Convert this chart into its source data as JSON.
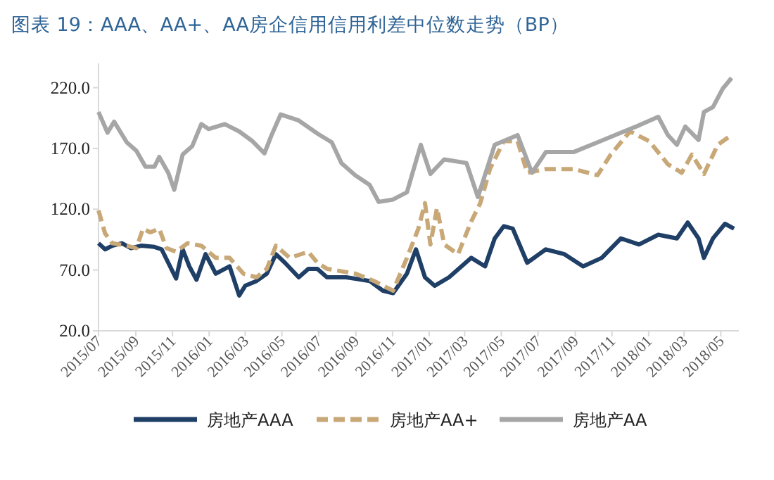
{
  "chart_data": {
    "type": "line",
    "title": "图表 19：AAA、AA+、AA房企信用信用利差中位数走势（BP）",
    "xlim": [
      "2015-07-01",
      "2018-05-31"
    ],
    "xticks": [
      {
        "value": "2015-07",
        "label": "2015/07"
      },
      {
        "value": "2015-09",
        "label": "2015/09"
      },
      {
        "value": "2015-11",
        "label": "2015/11"
      },
      {
        "value": "2016-01",
        "label": "2016/01"
      },
      {
        "value": "2016-03",
        "label": "2016/03"
      },
      {
        "value": "2016-05",
        "label": "2016/05"
      },
      {
        "value": "2016-07",
        "label": "2016/07"
      },
      {
        "value": "2016-09",
        "label": "2016/09"
      },
      {
        "value": "2016-11",
        "label": "2016/11"
      },
      {
        "value": "2017-01",
        "label": "2017/01"
      },
      {
        "value": "2017-03",
        "label": "2017/03"
      },
      {
        "value": "2017-05",
        "label": "2017/05"
      },
      {
        "value": "2017-07",
        "label": "2017/07"
      },
      {
        "value": "2017-09",
        "label": "2017/09"
      },
      {
        "value": "2017-11",
        "label": "2017/11"
      },
      {
        "value": "2018-01",
        "label": "2018/01"
      },
      {
        "value": "2018-03",
        "label": "2018/03"
      },
      {
        "value": "2018-05",
        "label": "2018/05"
      }
    ],
    "ylim": [
      20,
      240
    ],
    "yticks": [
      {
        "value": 20,
        "label": "20.0"
      },
      {
        "value": 70,
        "label": "70.0"
      },
      {
        "value": 120,
        "label": "120.0"
      },
      {
        "value": 170,
        "label": "170.0"
      },
      {
        "value": 220,
        "label": "220.0"
      }
    ],
    "grid": false,
    "legend": "bottom",
    "marker": "none",
    "series": [
      {
        "name": "房地产AAA",
        "color": "#1f3f66",
        "line_style": "solid",
        "x": [
          "2015-07-01",
          "2015-07-12",
          "2015-07-24",
          "2015-08-09",
          "2015-08-24",
          "2015-09-10",
          "2015-10-02",
          "2015-10-14",
          "2015-10-25",
          "2015-11-07",
          "2015-11-18",
          "2015-11-29",
          "2015-12-11",
          "2015-12-26",
          "2016-01-12",
          "2016-02-04",
          "2016-02-20",
          "2016-03-01",
          "2016-03-20",
          "2016-04-06",
          "2016-04-21",
          "2016-05-06",
          "2016-05-29",
          "2016-06-14",
          "2016-06-29",
          "2016-07-15",
          "2016-08-16",
          "2016-09-24",
          "2016-10-16",
          "2016-11-02",
          "2016-11-25",
          "2016-12-10",
          "2016-12-25",
          "2017-01-10",
          "2017-02-03",
          "2017-03-12",
          "2017-04-04",
          "2017-04-20",
          "2017-05-05",
          "2017-05-20",
          "2017-06-13",
          "2017-07-14",
          "2017-08-14",
          "2017-09-14",
          "2017-10-15",
          "2017-11-16",
          "2017-12-16",
          "2018-01-17",
          "2018-02-17",
          "2018-03-07",
          "2018-03-25",
          "2018-04-03",
          "2018-04-18",
          "2018-05-08",
          "2018-05-23"
        ],
        "values": [
          92,
          87,
          90,
          92,
          88,
          90,
          89,
          87,
          76,
          63,
          87,
          73,
          62,
          83,
          67,
          73,
          49,
          57,
          61,
          67,
          83,
          76,
          64,
          71,
          71,
          64,
          64,
          61,
          53,
          51,
          67,
          87,
          64,
          57,
          64,
          80,
          73,
          96,
          106,
          104,
          76,
          87,
          83,
          73,
          80,
          96,
          91,
          99,
          96,
          109,
          96,
          80,
          96,
          108,
          104
        ]
      },
      {
        "name": "房地产AA+",
        "color": "#c8a877",
        "line_style": "dashed",
        "x": [
          "2015-07-01",
          "2015-07-12",
          "2015-07-24",
          "2015-08-17",
          "2015-09-02",
          "2015-09-13",
          "2015-09-25",
          "2015-10-10",
          "2015-10-22",
          "2015-11-07",
          "2015-11-26",
          "2015-12-19",
          "2016-01-12",
          "2016-02-04",
          "2016-02-27",
          "2016-03-20",
          "2016-04-06",
          "2016-04-21",
          "2016-05-14",
          "2016-06-14",
          "2016-06-29",
          "2016-07-15",
          "2016-08-31",
          "2016-10-01",
          "2016-11-02",
          "2016-11-25",
          "2016-12-14",
          "2016-12-25",
          "2017-01-03",
          "2017-01-14",
          "2017-01-26",
          "2017-02-18",
          "2017-03-12",
          "2017-03-27",
          "2017-04-12",
          "2017-05-05",
          "2017-05-28",
          "2017-06-13",
          "2017-07-14",
          "2017-08-29",
          "2017-10-08",
          "2017-10-30",
          "2017-12-01",
          "2018-01-02",
          "2018-02-02",
          "2018-02-25",
          "2018-03-14",
          "2018-04-03",
          "2018-04-26",
          "2018-05-19"
        ],
        "values": [
          119,
          100,
          92,
          90,
          88,
          104,
          101,
          104,
          88,
          85,
          92,
          90,
          80,
          80,
          67,
          64,
          71,
          90,
          80,
          85,
          76,
          71,
          67,
          61,
          53,
          80,
          104,
          125,
          91,
          121,
          91,
          83,
          110,
          125,
          153,
          176,
          176,
          150,
          153,
          153,
          148,
          165,
          184,
          176,
          157,
          150,
          165,
          149,
          173,
          181
        ]
      },
      {
        "name": "房地产AA",
        "color": "#a6a6a6",
        "line_style": "solid",
        "x": [
          "2015-07-01",
          "2015-07-16",
          "2015-07-27",
          "2015-08-17",
          "2015-09-02",
          "2015-09-17",
          "2015-10-02",
          "2015-10-10",
          "2015-10-25",
          "2015-11-04",
          "2015-11-18",
          "2015-12-04",
          "2015-12-19",
          "2015-12-31",
          "2016-01-27",
          "2016-02-20",
          "2016-03-13",
          "2016-04-02",
          "2016-04-13",
          "2016-04-29",
          "2016-05-29",
          "2016-06-30",
          "2016-07-23",
          "2016-08-08",
          "2016-08-31",
          "2016-09-24",
          "2016-10-09",
          "2016-11-02",
          "2016-11-25",
          "2016-12-18",
          "2017-01-03",
          "2017-01-26",
          "2017-03-04",
          "2017-03-23",
          "2017-04-20",
          "2017-05-28",
          "2017-06-21",
          "2017-07-14",
          "2017-08-29",
          "2017-10-08",
          "2017-11-16",
          "2017-12-16",
          "2018-01-17",
          "2018-02-02",
          "2018-02-17",
          "2018-03-03",
          "2018-03-25",
          "2018-04-03",
          "2018-04-18",
          "2018-05-04",
          "2018-05-19"
        ],
        "values": [
          200,
          183,
          192,
          175,
          168,
          155,
          155,
          163,
          150,
          136,
          165,
          172,
          190,
          186,
          190,
          184,
          176,
          166,
          180,
          198,
          193,
          182,
          175,
          158,
          148,
          140,
          126,
          128,
          134,
          173,
          149,
          161,
          158,
          130,
          173,
          181,
          150,
          167,
          167,
          175,
          183,
          189,
          196,
          181,
          173,
          188,
          177,
          200,
          204,
          219,
          228
        ]
      }
    ]
  }
}
